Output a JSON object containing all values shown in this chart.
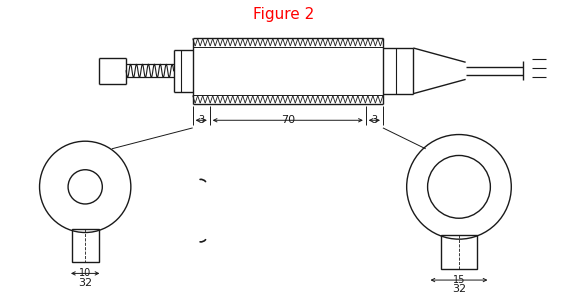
{
  "title": "Figure 2",
  "title_color": "#FF0000",
  "title_fontsize": 11,
  "bg_color": "#FFFFFF",
  "line_color": "#1a1a1a",
  "fig_width": 5.67,
  "fig_height": 2.93,
  "dpi": 100,
  "dim_3_left_label": "3",
  "dim_70_label": "70",
  "dim_3_right_label": "3",
  "left_dim_10": "10",
  "left_dim_32": "32",
  "right_dim_15": "15",
  "right_dim_32": "32"
}
